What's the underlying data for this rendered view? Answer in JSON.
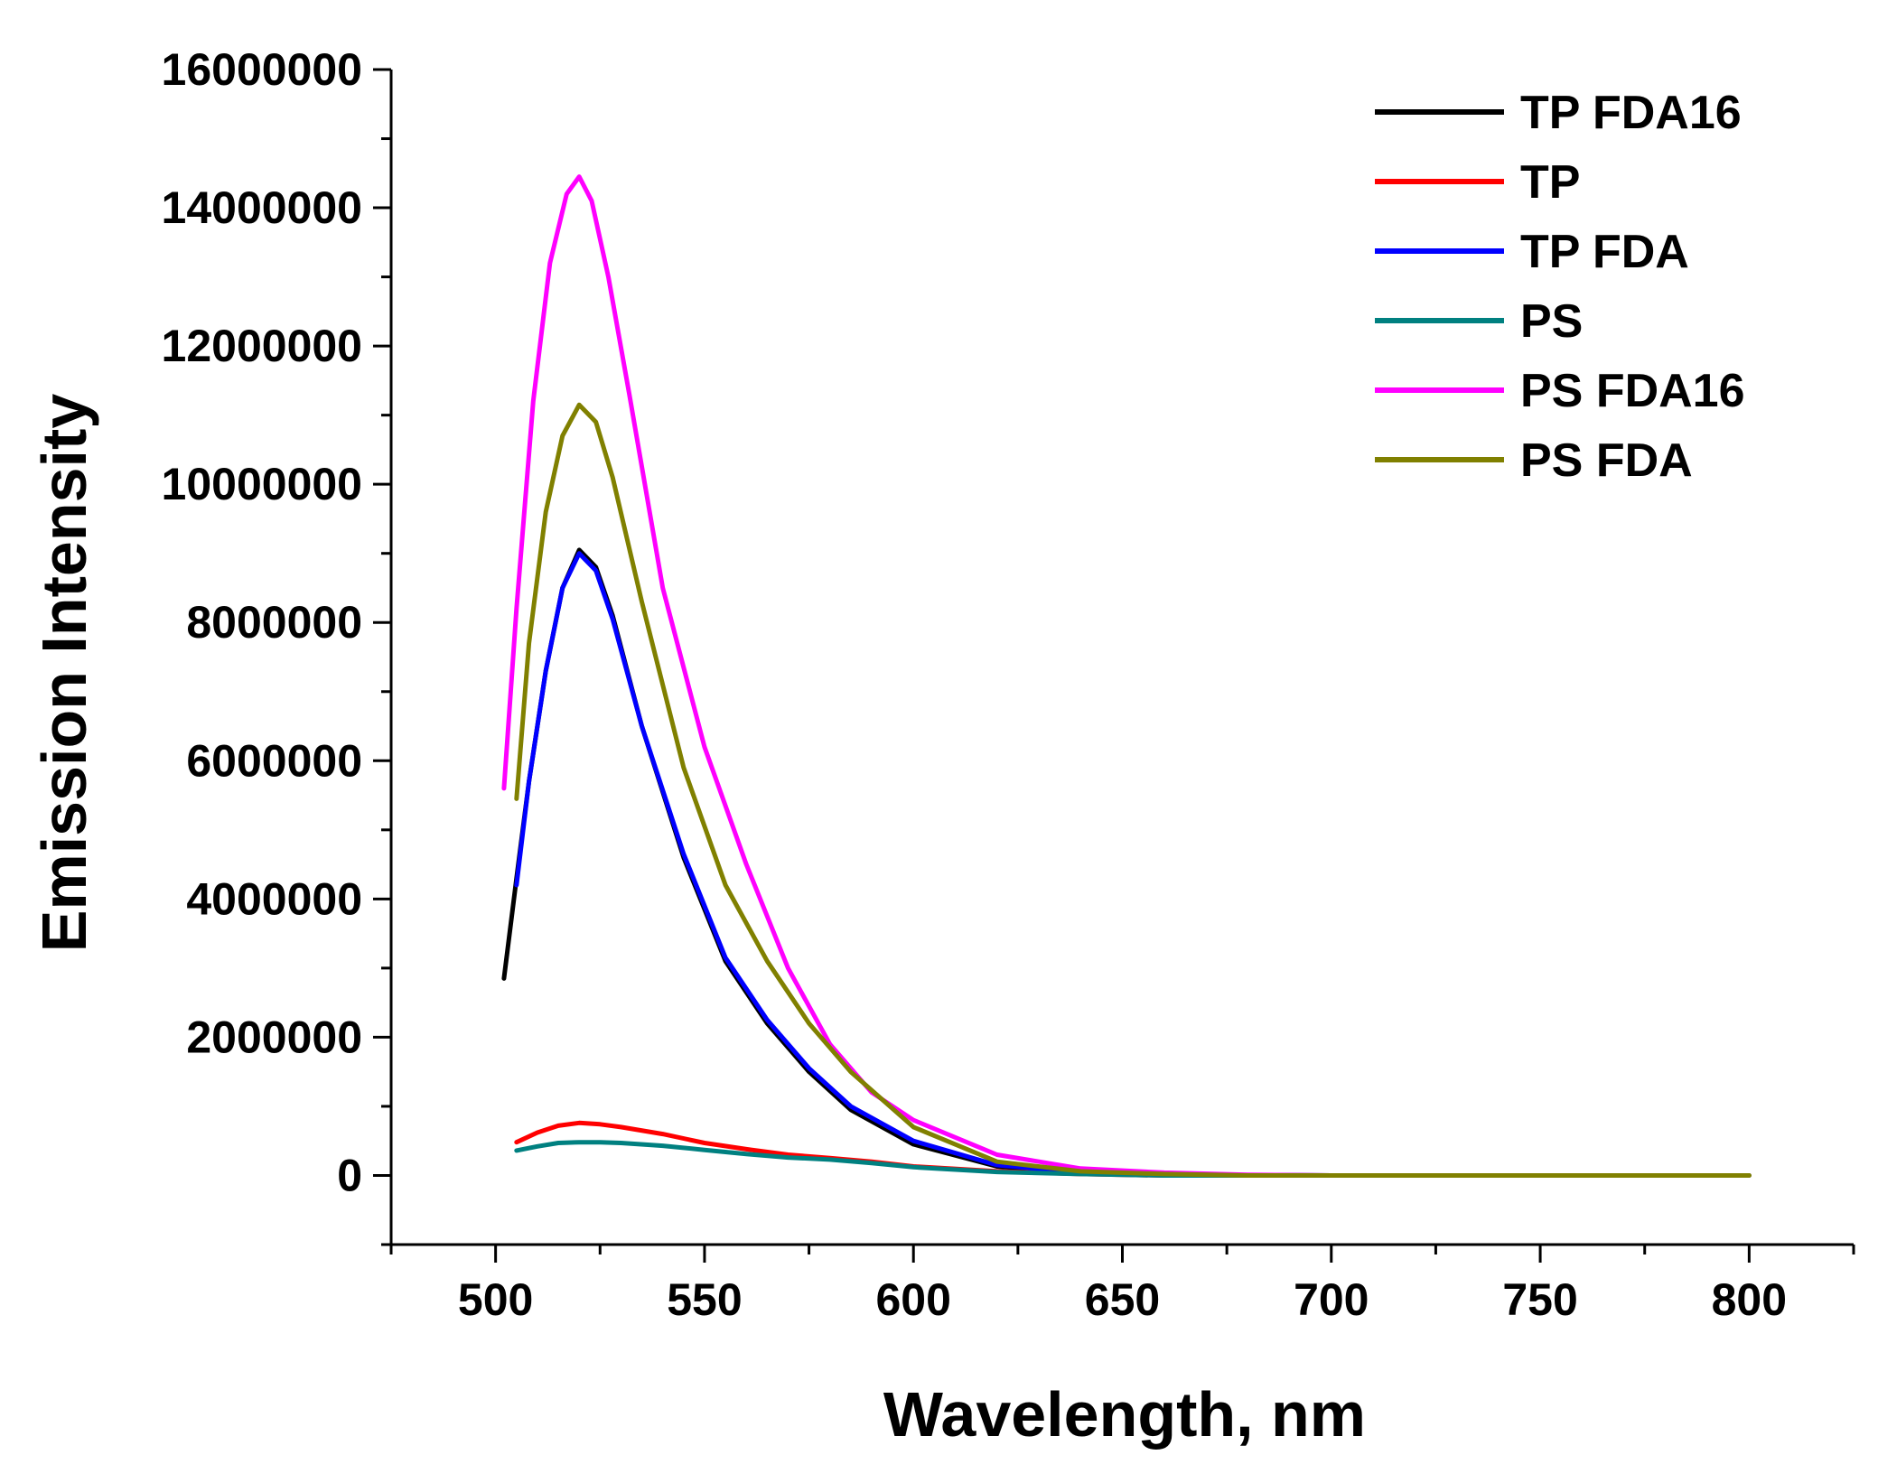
{
  "chart_data": {
    "type": "line",
    "title": "",
    "xlabel": "Wavelength,  nm",
    "ylabel": "Emission Intensity",
    "xlim": [
      475,
      825
    ],
    "ylim": [
      -1000000,
      16000000
    ],
    "xticks": [
      500,
      550,
      600,
      650,
      700,
      750,
      800
    ],
    "xtick_labels": [
      "500",
      "550",
      "600",
      "650",
      "700",
      "750",
      "800"
    ],
    "yticks": [
      0,
      2000000,
      4000000,
      6000000,
      8000000,
      10000000,
      12000000,
      14000000,
      16000000
    ],
    "ytick_labels": [
      "0",
      "2000000",
      "4000000",
      "6000000",
      "8000000",
      "10000000",
      "12000000",
      "14000000",
      "16000000"
    ],
    "grid": false,
    "legend_position": "top-right",
    "series": [
      {
        "name": "TP FDA16",
        "color": "#000000",
        "x": [
          502,
          505,
          508,
          512,
          516,
          520,
          524,
          528,
          535,
          545,
          555,
          565,
          575,
          585,
          600,
          620,
          640,
          660,
          700,
          800
        ],
        "y": [
          2850000,
          4300000,
          5700000,
          7300000,
          8500000,
          9050000,
          8800000,
          8100000,
          6500000,
          4600000,
          3100000,
          2200000,
          1500000,
          950000,
          450000,
          130000,
          40000,
          10000,
          0,
          0
        ]
      },
      {
        "name": "TP",
        "color": "#ff0000",
        "x": [
          505,
          510,
          515,
          520,
          525,
          530,
          540,
          550,
          560,
          570,
          580,
          590,
          600,
          620,
          640,
          660,
          680,
          700
        ],
        "y": [
          480000,
          620000,
          720000,
          760000,
          740000,
          700000,
          600000,
          470000,
          380000,
          300000,
          250000,
          200000,
          130000,
          60000,
          20000,
          0,
          0,
          0
        ]
      },
      {
        "name": "TP FDA",
        "color": "#0000ff",
        "x": [
          505,
          508,
          512,
          516,
          520,
          524,
          528,
          535,
          545,
          555,
          565,
          575,
          585,
          600,
          620,
          640,
          660,
          700
        ],
        "y": [
          4200000,
          5700000,
          7300000,
          8500000,
          9000000,
          8750000,
          8050000,
          6500000,
          4650000,
          3150000,
          2250000,
          1550000,
          1000000,
          500000,
          150000,
          40000,
          10000,
          0
        ]
      },
      {
        "name": "PS",
        "color": "#008080",
        "x": [
          505,
          510,
          515,
          520,
          525,
          530,
          540,
          550,
          560,
          570,
          580,
          590,
          600,
          620,
          640,
          660,
          680,
          700
        ],
        "y": [
          360000,
          420000,
          470000,
          480000,
          480000,
          470000,
          430000,
          370000,
          310000,
          260000,
          230000,
          180000,
          120000,
          50000,
          20000,
          0,
          0,
          0
        ]
      },
      {
        "name": "PS FDA16",
        "color": "#ff00ff",
        "x": [
          502,
          505,
          509,
          513,
          517,
          520,
          523,
          527,
          532,
          540,
          550,
          560,
          570,
          580,
          590,
          600,
          620,
          640,
          660,
          680,
          700
        ],
        "y": [
          5600000,
          8200000,
          11200000,
          13200000,
          14200000,
          14450000,
          14100000,
          13000000,
          11300000,
          8500000,
          6200000,
          4500000,
          3000000,
          1900000,
          1200000,
          800000,
          300000,
          100000,
          40000,
          10000,
          0
        ]
      },
      {
        "name": "PS FDA",
        "color": "#808000",
        "x": [
          505,
          508,
          512,
          516,
          520,
          524,
          528,
          535,
          545,
          555,
          565,
          575,
          585,
          600,
          620,
          640,
          660,
          680,
          700,
          750,
          800
        ],
        "y": [
          5450000,
          7700000,
          9600000,
          10700000,
          11150000,
          10900000,
          10100000,
          8300000,
          5900000,
          4200000,
          3100000,
          2200000,
          1500000,
          700000,
          200000,
          60000,
          20000,
          0,
          0,
          0,
          0
        ]
      }
    ]
  }
}
